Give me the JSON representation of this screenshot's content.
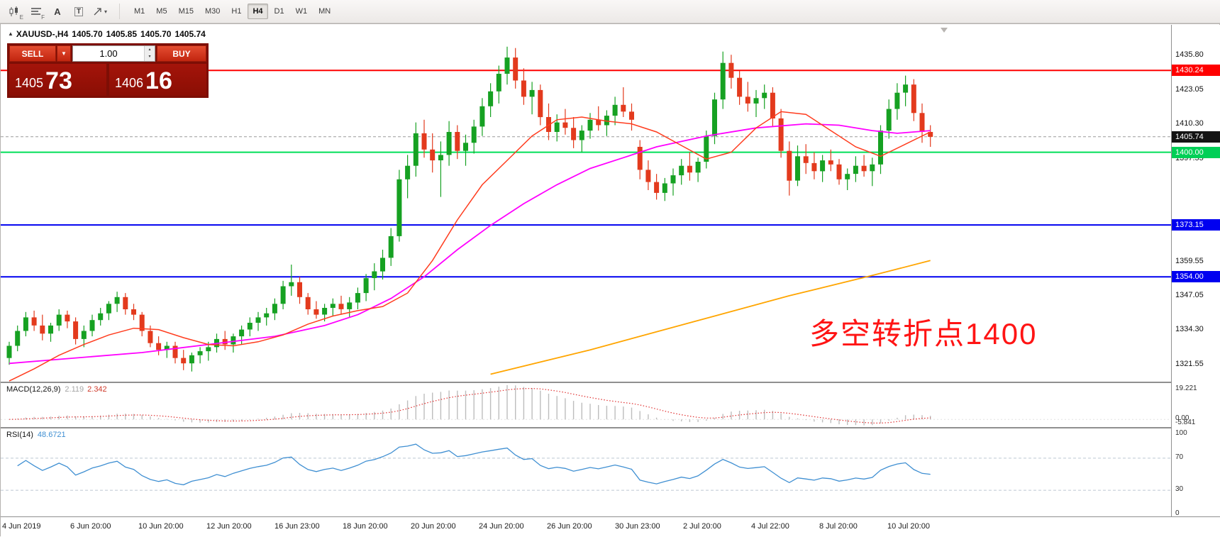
{
  "toolbar": {
    "tools": [
      {
        "name": "chart-style",
        "sub": "E"
      },
      {
        "name": "indicators",
        "sub": "F"
      },
      {
        "name": "text-tool",
        "glyph": "A"
      },
      {
        "name": "template-tool",
        "glyph": "T"
      },
      {
        "name": "cursor-tool",
        "caret": "▾"
      }
    ],
    "timeframes": [
      "M1",
      "M5",
      "M15",
      "M30",
      "H1",
      "H4",
      "D1",
      "W1",
      "MN"
    ],
    "active_timeframe": "H4"
  },
  "chart_header": {
    "collapse_glyph": "▲",
    "title": "XAUUSD-,H4",
    "open": "1405.70",
    "high": "1405.85",
    "low": "1405.70",
    "close": "1405.74"
  },
  "trade_panel": {
    "sell_label": "SELL",
    "buy_label": "BUY",
    "dropdown_glyph": "▼",
    "lot_size": "1.00",
    "spinner_up": "▴",
    "spinner_down": "▾",
    "bid": {
      "main": "1405",
      "pips": "73"
    },
    "ask": {
      "main": "1406",
      "pips": "16"
    }
  },
  "annotation": {
    "text": "多空转折点1400",
    "color": "#ff1414"
  },
  "price_axis": {
    "ticks": [
      {
        "label": "1435.80",
        "price": 1435.8
      },
      {
        "label": "1423.05",
        "price": 1423.05
      },
      {
        "label": "1410.30",
        "price": 1410.3
      },
      {
        "label": "1397.55",
        "price": 1397.55
      },
      {
        "label": "1359.55",
        "price": 1359.55
      },
      {
        "label": "1347.05",
        "price": 1347.05
      },
      {
        "label": "1334.30",
        "price": 1334.3
      },
      {
        "label": "1321.55",
        "price": 1321.55
      }
    ],
    "badges": [
      {
        "label": "1430.24",
        "price": 1430.24,
        "bg": "#ff0000",
        "fg": "#ffffff"
      },
      {
        "label": "1405.74",
        "price": 1405.74,
        "bg": "#141414",
        "fg": "#ffffff"
      },
      {
        "label": "1400.00",
        "price": 1400.0,
        "bg": "#00cf56",
        "fg": "#ffffff"
      },
      {
        "label": "1373.15",
        "price": 1373.15,
        "bg": "#0000f0",
        "fg": "#ffffff"
      },
      {
        "label": "1354.00",
        "price": 1354.0,
        "bg": "#0000f0",
        "fg": "#ffffff"
      }
    ]
  },
  "indicators": {
    "macd": {
      "label": "MACD(12,26,9)",
      "main_value": "2.119",
      "signal_value": "2.342",
      "scale_top": "19.221",
      "scale_zero": "0.00",
      "scale_bottom": "-5.841"
    },
    "rsi": {
      "label": "RSI(14)",
      "value": "48.6721",
      "scale": [
        {
          "label": "100",
          "value": 100
        },
        {
          "label": "70",
          "value": 70
        },
        {
          "label": "30",
          "value": 30
        },
        {
          "label": "0",
          "value": 0
        }
      ],
      "levels": [
        70,
        30
      ]
    }
  },
  "time_axis": {
    "labels": [
      "4 Jun 2019",
      "6 Jun 20:00",
      "10 Jun 20:00",
      "12 Jun 20:00",
      "16 Jun 23:00",
      "18 Jun 20:00",
      "20 Jun 20:00",
      "24 Jun 20:00",
      "26 Jun 20:00",
      "30 Jun 23:00",
      "2 Jul 20:00",
      "4 Jul 22:00",
      "8 Jul 20:00",
      "10 Jul 20:00"
    ]
  },
  "chart_data": {
    "type": "candlestick",
    "symbol": "XAUUSD-",
    "timeframe": "H4",
    "title": "XAUUSD-,H4",
    "ohlc_display": {
      "open": 1405.7,
      "high": 1405.85,
      "low": 1405.7,
      "close": 1405.74
    },
    "ylim": [
      1315.26,
      1447.07
    ],
    "current_price": 1405.74,
    "colors": {
      "up": "#16a122",
      "down": "#e33a1d",
      "ma_fast": "#ff3c1e",
      "ma_mid": "#ff00ff",
      "ma_slow": "#ffa500",
      "macd_hist": "#bdbdbd",
      "macd_signal": "#e03131",
      "rsi": "#3f8fd2",
      "hline_resistance": "#ff0000",
      "hline_pivot": "#00df58",
      "hline_support": "#0000f0"
    },
    "hlines": [
      {
        "price": 1430.24,
        "color": "#ff0000",
        "width": 2
      },
      {
        "price": 1400.0,
        "color": "#00df58",
        "width": 2
      },
      {
        "price": 1373.15,
        "color": "#0000f0",
        "width": 2
      },
      {
        "price": 1354.0,
        "color": "#0000f0",
        "width": 2
      }
    ],
    "candles": [
      [
        1324,
        1330,
        1321.5,
        1328.5
      ],
      [
        1328.5,
        1336,
        1326.5,
        1334
      ],
      [
        1334,
        1341,
        1332,
        1339
      ],
      [
        1339,
        1341.5,
        1334,
        1336
      ],
      [
        1336,
        1340,
        1330.5,
        1333
      ],
      [
        1333,
        1337,
        1330,
        1336
      ],
      [
        1336,
        1342,
        1334,
        1340
      ],
      [
        1340,
        1341.5,
        1335,
        1337.5
      ],
      [
        1337.5,
        1339,
        1329,
        1331
      ],
      [
        1331,
        1336,
        1328,
        1334
      ],
      [
        1334,
        1340,
        1332,
        1338
      ],
      [
        1338,
        1342.5,
        1336,
        1340.5
      ],
      [
        1340.5,
        1345,
        1338,
        1344
      ],
      [
        1344,
        1348.5,
        1341,
        1346.5
      ],
      [
        1346.5,
        1348,
        1340,
        1342
      ],
      [
        1342,
        1344,
        1338,
        1340
      ],
      [
        1340,
        1341,
        1332,
        1334
      ],
      [
        1334,
        1336,
        1328,
        1329.5
      ],
      [
        1329.5,
        1332,
        1325,
        1327
      ],
      [
        1327,
        1330,
        1324,
        1328.5
      ],
      [
        1328.5,
        1330,
        1322,
        1324
      ],
      [
        1324,
        1327,
        1319.5,
        1322
      ],
      [
        1322,
        1326,
        1319,
        1325
      ],
      [
        1325,
        1328,
        1322,
        1326.5
      ],
      [
        1326.5,
        1330,
        1323,
        1328
      ],
      [
        1328,
        1333,
        1326,
        1331
      ],
      [
        1331,
        1334,
        1327,
        1329
      ],
      [
        1329,
        1333,
        1326,
        1332
      ],
      [
        1332,
        1336,
        1329,
        1334.5
      ],
      [
        1334.5,
        1339,
        1332,
        1337
      ],
      [
        1337,
        1341,
        1334,
        1339
      ],
      [
        1339,
        1342.5,
        1336,
        1340.5
      ],
      [
        1340.5,
        1346,
        1338,
        1344
      ],
      [
        1344,
        1352.5,
        1342,
        1350.5
      ],
      [
        1350.5,
        1358.5,
        1347,
        1352
      ],
      [
        1352,
        1354,
        1344,
        1346.5
      ],
      [
        1346.5,
        1348,
        1340,
        1342
      ],
      [
        1342,
        1345,
        1338.5,
        1340
      ],
      [
        1340,
        1344,
        1337.5,
        1342.5
      ],
      [
        1342.5,
        1346,
        1339.5,
        1344
      ],
      [
        1344,
        1347,
        1340,
        1342
      ],
      [
        1342,
        1346.5,
        1339,
        1344.5
      ],
      [
        1344.5,
        1350,
        1342,
        1348
      ],
      [
        1348,
        1355,
        1345,
        1353.5
      ],
      [
        1353.5,
        1359,
        1349,
        1356
      ],
      [
        1356,
        1364,
        1353,
        1361
      ],
      [
        1361,
        1372,
        1358,
        1369
      ],
      [
        1369,
        1393.5,
        1367,
        1390
      ],
      [
        1390,
        1399,
        1383,
        1395
      ],
      [
        1395,
        1411,
        1391,
        1407
      ],
      [
        1407,
        1412,
        1398,
        1401
      ],
      [
        1401,
        1407,
        1392.5,
        1397
      ],
      [
        1397,
        1404,
        1383.5,
        1399
      ],
      [
        1399,
        1411.5,
        1395,
        1407.5
      ],
      [
        1407.5,
        1410,
        1397.5,
        1400.5
      ],
      [
        1400.5,
        1406.5,
        1395,
        1403.5
      ],
      [
        1403.5,
        1412,
        1399.5,
        1409.5
      ],
      [
        1409.5,
        1420,
        1406,
        1417
      ],
      [
        1417,
        1425.5,
        1413,
        1422.5
      ],
      [
        1422.5,
        1432,
        1418,
        1429
      ],
      [
        1429,
        1439,
        1425,
        1435
      ],
      [
        1435,
        1438.5,
        1423.5,
        1426.5
      ],
      [
        1426.5,
        1431,
        1417.5,
        1420.5
      ],
      [
        1420.5,
        1426,
        1414,
        1423
      ],
      [
        1423,
        1425,
        1410,
        1413
      ],
      [
        1413,
        1418,
        1404.5,
        1407.5
      ],
      [
        1407.5,
        1414,
        1404,
        1411
      ],
      [
        1411,
        1416,
        1406.5,
        1409
      ],
      [
        1409,
        1413,
        1401.5,
        1404.5
      ],
      [
        1404.5,
        1410,
        1400,
        1408
      ],
      [
        1408,
        1414.5,
        1405,
        1412
      ],
      [
        1412,
        1417,
        1408,
        1410
      ],
      [
        1410,
        1415.5,
        1406,
        1413.5
      ],
      [
        1413.5,
        1420.5,
        1410,
        1417.5
      ],
      [
        1417.5,
        1424,
        1413,
        1415
      ],
      [
        1415,
        1418,
        1408,
        1412
      ],
      [
        1402,
        1404.5,
        1390,
        1393.5
      ],
      [
        1393.5,
        1397,
        1386,
        1389
      ],
      [
        1389,
        1392,
        1382.5,
        1385
      ],
      [
        1385,
        1390.5,
        1382,
        1388.5
      ],
      [
        1388.5,
        1394,
        1384,
        1391.5
      ],
      [
        1391.5,
        1397.5,
        1388,
        1395
      ],
      [
        1395,
        1400,
        1389.5,
        1392.5
      ],
      [
        1392.5,
        1398,
        1389,
        1396.5
      ],
      [
        1396.5,
        1408,
        1394,
        1406
      ],
      [
        1406,
        1422,
        1403,
        1419.5
      ],
      [
        1419.5,
        1437.2,
        1416,
        1433
      ],
      [
        1433,
        1436,
        1423.5,
        1427.5
      ],
      [
        1427.5,
        1430,
        1417.5,
        1420.5
      ],
      [
        1420.5,
        1426,
        1415,
        1418
      ],
      [
        1418,
        1423,
        1413,
        1420
      ],
      [
        1420,
        1425,
        1416,
        1422
      ],
      [
        1422,
        1424,
        1409.5,
        1412.5
      ],
      [
        1412.5,
        1416,
        1398,
        1400.5
      ],
      [
        1400.5,
        1404,
        1384,
        1389.5
      ],
      [
        1389.5,
        1402.5,
        1387.5,
        1398.5
      ],
      [
        1398.5,
        1403,
        1392,
        1396
      ],
      [
        1396,
        1400,
        1390,
        1393
      ],
      [
        1393,
        1399,
        1389,
        1397
      ],
      [
        1397,
        1401,
        1393,
        1395.5
      ],
      [
        1395.5,
        1397.5,
        1388,
        1390
      ],
      [
        1390,
        1394,
        1386,
        1392
      ],
      [
        1392,
        1398.5,
        1389,
        1395
      ],
      [
        1395,
        1399,
        1391,
        1393
      ],
      [
        1393,
        1398,
        1387.5,
        1395.5
      ],
      [
        1395.5,
        1410,
        1392,
        1408
      ],
      [
        1408,
        1419.5,
        1405,
        1416
      ],
      [
        1416,
        1425.5,
        1412,
        1422
      ],
      [
        1422,
        1428.3,
        1417,
        1425
      ],
      [
        1425,
        1427,
        1411.5,
        1414.5
      ],
      [
        1414.5,
        1418,
        1403.5,
        1407.5
      ],
      [
        1407.5,
        1410,
        1402,
        1405.7
      ]
    ],
    "ma_fast_points": [
      [
        0,
        1315.5
      ],
      [
        3,
        1320
      ],
      [
        6,
        1325
      ],
      [
        9,
        1329
      ],
      [
        12,
        1332.5
      ],
      [
        15,
        1335
      ],
      [
        18,
        1334.5
      ],
      [
        21,
        1331.5
      ],
      [
        24,
        1329
      ],
      [
        27,
        1328.5
      ],
      [
        30,
        1330
      ],
      [
        33,
        1332.5
      ],
      [
        36,
        1336.5
      ],
      [
        39,
        1339.5
      ],
      [
        42,
        1341.5
      ],
      [
        45,
        1343
      ],
      [
        48,
        1348
      ],
      [
        51,
        1360
      ],
      [
        54,
        1375
      ],
      [
        57,
        1388
      ],
      [
        60,
        1397
      ],
      [
        63,
        1406
      ],
      [
        66,
        1412
      ],
      [
        69,
        1413
      ],
      [
        72,
        1411.5
      ],
      [
        75,
        1410.5
      ],
      [
        78,
        1407.5
      ],
      [
        81,
        1402.5
      ],
      [
        84,
        1397.5
      ],
      [
        87,
        1400
      ],
      [
        90,
        1409
      ],
      [
        93,
        1415
      ],
      [
        96,
        1414
      ],
      [
        99,
        1408
      ],
      [
        102,
        1402
      ],
      [
        105,
        1398.5
      ],
      [
        108,
        1403
      ],
      [
        111,
        1407.5
      ]
    ],
    "ma_mid_points": [
      [
        0,
        1322
      ],
      [
        8,
        1324
      ],
      [
        16,
        1326
      ],
      [
        24,
        1329
      ],
      [
        32,
        1332
      ],
      [
        38,
        1336
      ],
      [
        42,
        1340
      ],
      [
        46,
        1346
      ],
      [
        50,
        1354
      ],
      [
        54,
        1364
      ],
      [
        58,
        1373
      ],
      [
        62,
        1381
      ],
      [
        66,
        1388
      ],
      [
        70,
        1394
      ],
      [
        74,
        1398
      ],
      [
        78,
        1402
      ],
      [
        84,
        1406
      ],
      [
        90,
        1409
      ],
      [
        96,
        1410.5
      ],
      [
        100,
        1410
      ],
      [
        104,
        1408
      ],
      [
        107,
        1407
      ],
      [
        111,
        1408
      ]
    ],
    "ma_slow_points": [
      [
        58,
        1318
      ],
      [
        70,
        1327
      ],
      [
        82,
        1337
      ],
      [
        94,
        1347
      ],
      [
        104,
        1354.5
      ],
      [
        111,
        1360
      ]
    ]
  }
}
